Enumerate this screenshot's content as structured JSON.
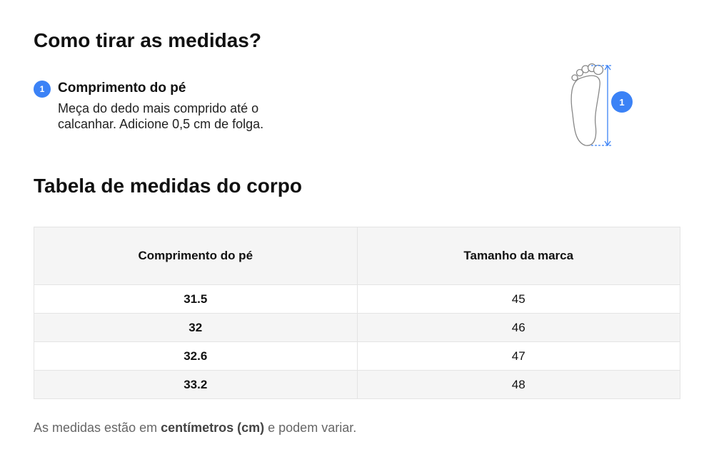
{
  "header": {
    "title": "Como tirar as medidas?"
  },
  "step": {
    "number": "1",
    "title": "Comprimento do pé",
    "text_lines": [
      "Meça do dedo mais comprido até o",
      "calcanhar. Adicione 0,5 cm de folga."
    ]
  },
  "illustration": {
    "marker": "1"
  },
  "table": {
    "title": "Tabela de medidas do corpo",
    "headers": [
      "Comprimento do pé",
      "Tamanho da marca"
    ],
    "rows": [
      [
        "31.5",
        "45"
      ],
      [
        "32",
        "46"
      ],
      [
        "32.6",
        "47"
      ],
      [
        "33.2",
        "48"
      ]
    ]
  },
  "footer": {
    "parts": [
      "As medidas estão em ",
      "centímetros (cm)",
      " e podem variar."
    ]
  }
}
